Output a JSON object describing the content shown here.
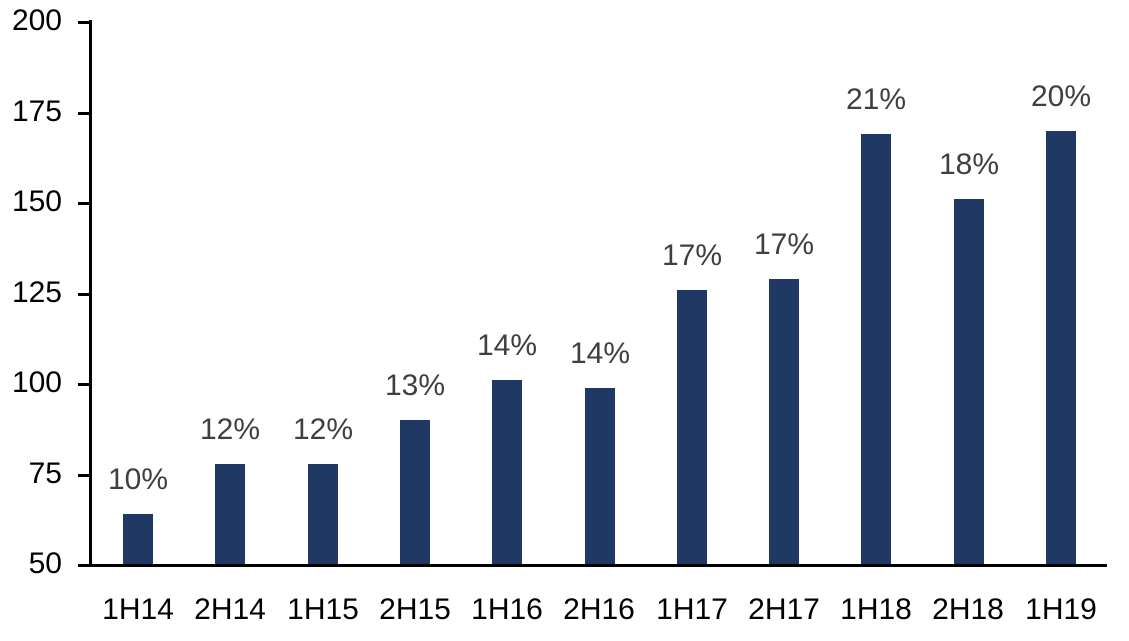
{
  "chart_data": {
    "type": "bar",
    "title": "",
    "xlabel": "",
    "ylabel": "",
    "categories": [
      "1H14",
      "2H14",
      "1H15",
      "2H15",
      "1H16",
      "2H16",
      "1H17",
      "2H17",
      "1H18",
      "2H18",
      "1H19"
    ],
    "values": [
      64,
      78,
      78,
      90,
      101,
      99,
      126,
      129,
      169,
      151,
      170
    ],
    "bar_labels": [
      "10%",
      "12%",
      "12%",
      "13%",
      "14%",
      "14%",
      "17%",
      "17%",
      "21%",
      "18%",
      "20%"
    ],
    "ylim": [
      50,
      200
    ],
    "y_ticks": [
      50,
      75,
      100,
      125,
      150,
      175,
      200
    ],
    "grid": false,
    "legend": false,
    "colors": {
      "bar": "#1F3864",
      "bar_label_text": "#3F3F3F",
      "axis_and_tick_text": "#000000",
      "background": "#FFFFFF"
    }
  }
}
